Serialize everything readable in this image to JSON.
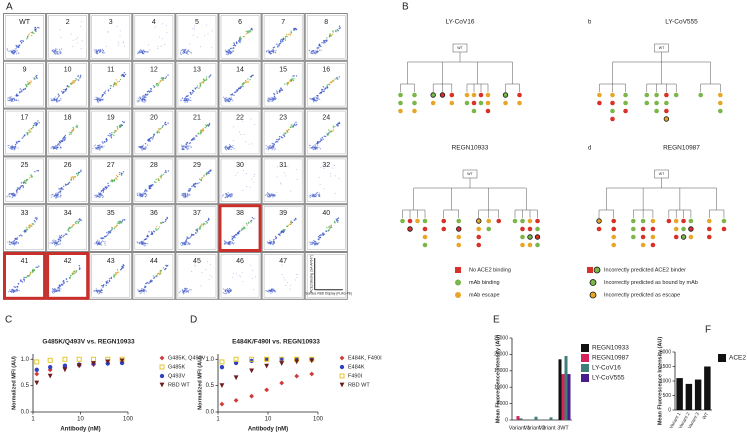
{
  "figure": {
    "panel_labels": [
      "A",
      "B",
      "C",
      "D",
      "E",
      "F"
    ],
    "panel_a": {
      "plots": [
        "WT",
        "2",
        "3",
        "4",
        "5",
        "6",
        "7",
        "8",
        "9",
        "10",
        "11",
        "12",
        "13",
        "14",
        "15",
        "16",
        "17",
        "18",
        "19",
        "20",
        "21",
        "22",
        "23",
        "24",
        "25",
        "26",
        "27",
        "28",
        "29",
        "30",
        "31",
        "32",
        "33",
        "34",
        "35",
        "36",
        "37",
        "38",
        "39",
        "40",
        "41",
        "42",
        "43",
        "44",
        "45",
        "46",
        "47"
      ],
      "y_axis_label": "ACE2 Binding (SA-AF647)",
      "x_axis_label": "Surface RBD Display (FLAG-PE)"
    },
    "panel_b": {
      "trees": [
        {
          "title": "LY-CoV16",
          "root": "WT"
        },
        {
          "letter": "b",
          "title": "LY-CoV555",
          "root": "WT"
        },
        {
          "title": "REGN10933",
          "root": "WT"
        },
        {
          "letter": "d",
          "title": "REGN10987",
          "root": "WT"
        }
      ],
      "legend": [
        {
          "label": "No ACE2 binding",
          "color": "#d7312a"
        },
        {
          "label": "mAb binding",
          "color": "#7ab648"
        },
        {
          "label": "mAb escape",
          "color": "#e8a629"
        },
        {
          "label": "Incorrectly predicted ACE2 binder",
          "color": "#d7312a"
        },
        {
          "label": "Incorrectly predicted as bound by mAb",
          "color": "#7ab648"
        },
        {
          "label": "Incorrectly predicted as escape",
          "color": "#e8a629"
        }
      ]
    }
  },
  "chart_data": [
    {
      "type": "scatter",
      "title": "G485K/Q493V vs. REGN10933",
      "x_label": "Antibody (nM)",
      "y_label": "Normalized MFI (AU)",
      "x": [
        1.2,
        2.3,
        4.7,
        9.4,
        18.8,
        37.5,
        75
      ],
      "xscale": "log",
      "xlim": [
        1,
        100
      ],
      "xticks": [
        1,
        10,
        100
      ],
      "ylim": [
        0,
        1.1
      ],
      "yticks": [
        {
          "value": 0,
          "label": "0.0"
        },
        0.5,
        {
          "value": 1,
          "label": "1.0"
        }
      ],
      "series": [
        {
          "name": "G485K, Q493V",
          "color": "#d03a3a",
          "marker": "diamond",
          "values": [
            0.72,
            0.8,
            0.85,
            0.88,
            0.9,
            0.92,
            0.93
          ]
        },
        {
          "name": "G485K",
          "color": "#e6c72e",
          "marker": "square",
          "values": [
            0.95,
            0.98,
            1.0,
            1.0,
            1.0,
            1.0,
            1.0
          ]
        },
        {
          "name": "Q493V",
          "color": "#3040c0",
          "marker": "circle",
          "values": [
            0.8,
            0.85,
            0.88,
            0.9,
            0.92,
            0.92,
            0.93
          ]
        },
        {
          "name": "RBD WT",
          "color": "#6e1b1b",
          "marker": "triangle",
          "values": [
            0.55,
            0.68,
            0.8,
            0.88,
            0.92,
            0.95,
            0.97
          ]
        }
      ]
    },
    {
      "type": "scatter",
      "title": "E484K/F490I vs. REGN10933",
      "x_label": "Antibody (nM)",
      "y_label": "Normalized MFI (AU)",
      "x": [
        1.2,
        2.3,
        4.7,
        9.4,
        18.8,
        37.5,
        75
      ],
      "xscale": "log",
      "xlim": [
        1,
        100
      ],
      "xticks": [
        1,
        10,
        100
      ],
      "ylim": [
        0,
        1.1
      ],
      "yticks": [
        {
          "value": 0,
          "label": "0.0"
        },
        0.5,
        {
          "value": 1,
          "label": "1.0"
        }
      ],
      "series": [
        {
          "name": "E484K, F490I",
          "color": "#d03a3a",
          "marker": "diamond",
          "values": [
            0.15,
            0.22,
            0.3,
            0.42,
            0.55,
            0.68,
            0.72
          ]
        },
        {
          "name": "E484K",
          "color": "#3040c0",
          "marker": "circle",
          "values": [
            0.85,
            0.93,
            0.97,
            1.0,
            1.0,
            1.0,
            1.0
          ]
        },
        {
          "name": "F490I",
          "color": "#e6c72e",
          "marker": "square",
          "values": [
            0.95,
            1.0,
            1.0,
            1.0,
            1.0,
            1.0,
            1.0
          ]
        },
        {
          "name": "RBD WT",
          "color": "#6e1b1b",
          "marker": "triangle",
          "values": [
            0.5,
            0.65,
            0.78,
            0.87,
            0.92,
            0.95,
            0.97
          ]
        }
      ]
    },
    {
      "type": "bar",
      "y_label": "Mean Fluorescence Intensity (AU)",
      "categories": [
        "Variant 1",
        "Variant 2",
        "Variant 3",
        "WT"
      ],
      "ylim": [
        0,
        25000
      ],
      "yticks": [
        0,
        5000,
        10000,
        15000,
        20000,
        25000
      ],
      "series": [
        {
          "name": "REGN10933",
          "color": "#111111",
          "values": [
            0,
            0,
            0,
            18500
          ]
        },
        {
          "name": "REGN10987",
          "color": "#d6245a",
          "values": [
            1200,
            0,
            0,
            14000
          ]
        },
        {
          "name": "LY-CoV16",
          "color": "#3f7f78",
          "values": [
            500,
            1000,
            800,
            19500
          ]
        },
        {
          "name": "LY-CoV555",
          "color": "#4b1d8c",
          "values": [
            0,
            0,
            0,
            14000
          ]
        }
      ]
    },
    {
      "type": "bar",
      "y_label": "Mean Fluorescence Intensity (AU)",
      "categories": [
        "Variant 1",
        "Variant 2",
        "Variant 3",
        "WT"
      ],
      "ylim": [
        0,
        2000
      ],
      "yticks": [
        0,
        500,
        1000,
        1500,
        2000
      ],
      "series": [
        {
          "name": "ACE2",
          "color": "#111111",
          "values": [
            1100,
            900,
            1050,
            1500
          ]
        }
      ]
    }
  ]
}
